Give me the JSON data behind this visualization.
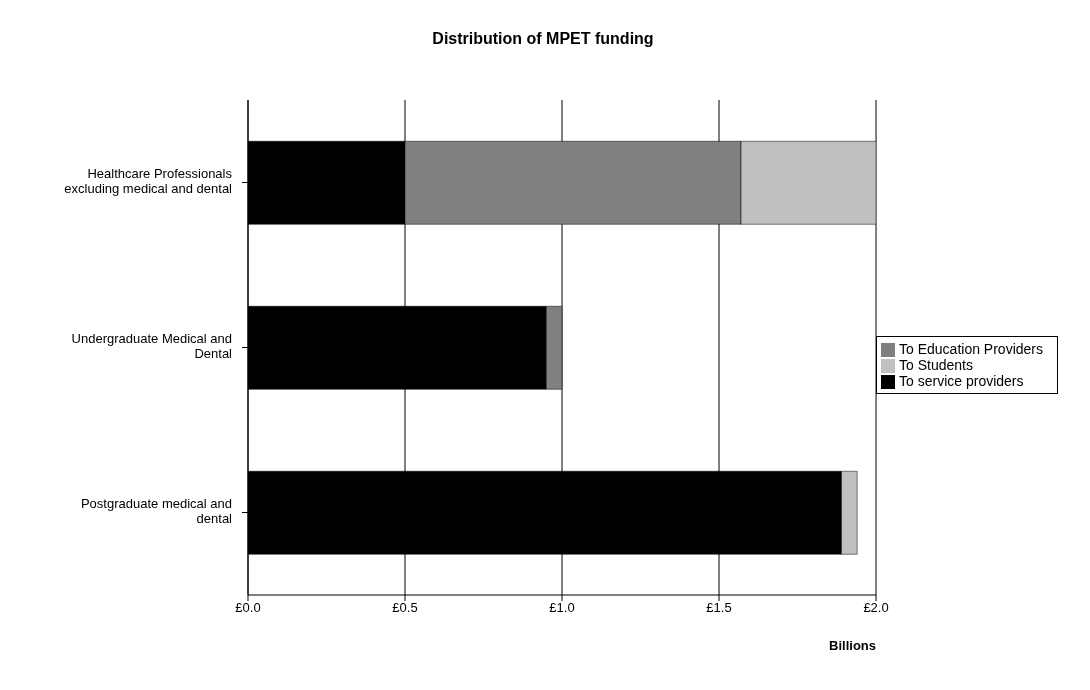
{
  "chart_data": {
    "type": "bar",
    "orientation": "horizontal",
    "stacked": true,
    "title": "Distribution of MPET funding",
    "xlabel": "Billions",
    "categories": [
      "Healthcare Professionals excluding medical  and dental",
      "Undergraduate Medical and Dental",
      "Postgraduate medical and dental"
    ],
    "series": [
      {
        "name": "To service providers",
        "color": "#000000",
        "values": [
          0.5,
          0.95,
          1.89
        ]
      },
      {
        "name": "To Education Providers",
        "color": "#808080",
        "values": [
          1.07,
          0.05,
          0
        ]
      },
      {
        "name": "To Students",
        "color": "#c0c0c0",
        "values": [
          0.43,
          0,
          0.05
        ]
      }
    ],
    "xlim": [
      0,
      2
    ],
    "xticks": [
      {
        "value": 0,
        "label": "£0.0"
      },
      {
        "value": 0.5,
        "label": "£0.5"
      },
      {
        "value": 1,
        "label": "£1.0"
      },
      {
        "value": 1.5,
        "label": "£1.5"
      },
      {
        "value": 2,
        "label": "£2.0"
      }
    ],
    "grid": "x",
    "legend": "right"
  }
}
